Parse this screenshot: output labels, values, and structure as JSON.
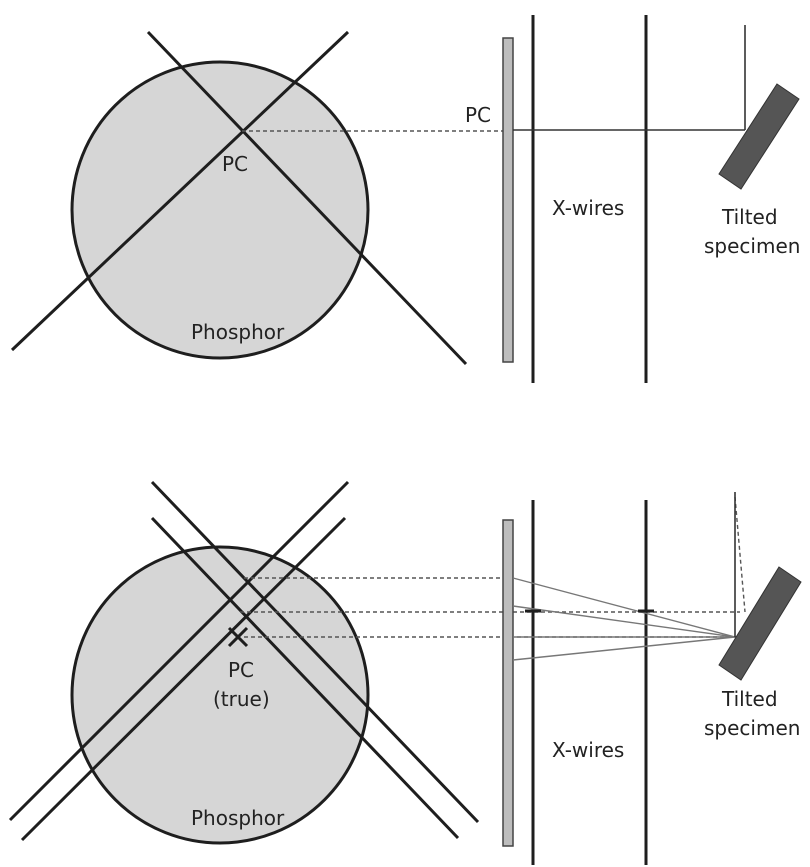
{
  "top": {
    "pc_left": "PC",
    "pc_right": "PC",
    "phosphor": "Phosphor",
    "x_wires": "X-wires",
    "specimen_line1": "Tilted",
    "specimen_line2": "specimen"
  },
  "bottom": {
    "pc_line1": "PC",
    "pc_line2": "(true)",
    "phosphor": "Phosphor",
    "x_wires": "X-wires",
    "specimen_line1": "Tilted",
    "specimen_line2": "specimen"
  }
}
